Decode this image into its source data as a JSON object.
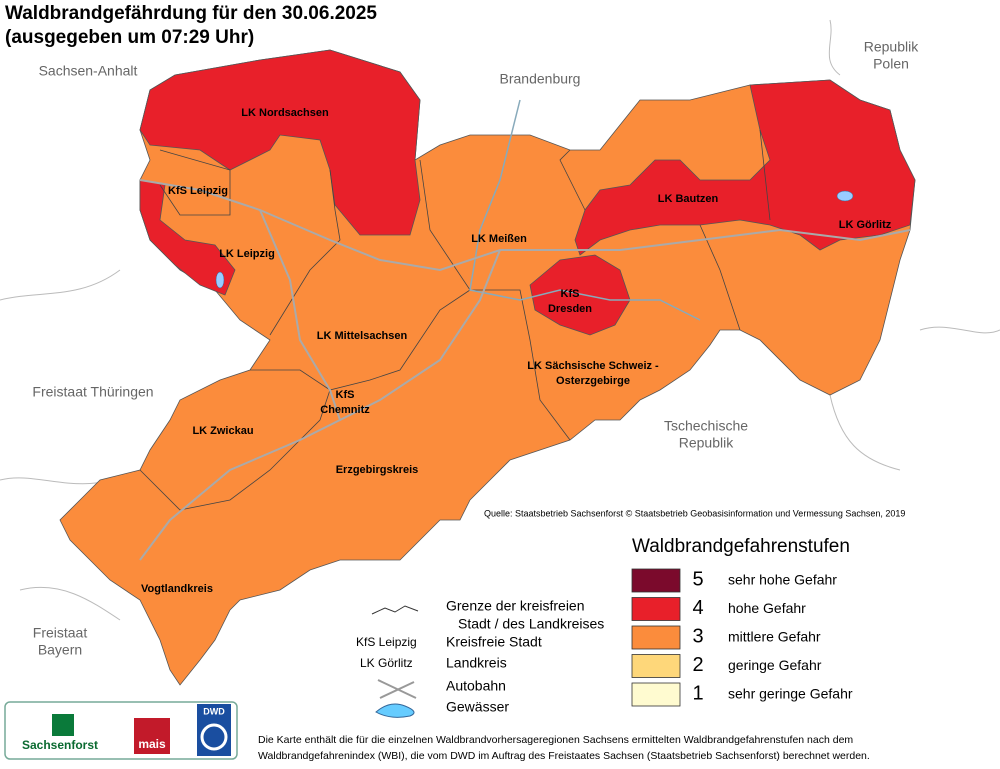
{
  "header": {
    "title": "Waldbrandgefährdung  für den  30.06.2025",
    "subtitle": "(ausgegeben um 07:29 Uhr)"
  },
  "neighbors": [
    {
      "lines": [
        "Sachsen-Anhalt"
      ]
    },
    {
      "lines": [
        "Brandenburg"
      ]
    },
    {
      "lines": [
        "Republik",
        "Polen"
      ]
    },
    {
      "lines": [
        "Freistaat Thüringen"
      ]
    },
    {
      "lines": [
        "Tschechische",
        "Republik"
      ]
    },
    {
      "lines": [
        "Freistaat",
        "Bayern"
      ]
    }
  ],
  "districts": [
    {
      "lines": [
        "LK Nordsachsen"
      ]
    },
    {
      "lines": [
        "KfS Leipzig"
      ]
    },
    {
      "lines": [
        "LK Leipzig"
      ]
    },
    {
      "lines": [
        "LK Meißen"
      ]
    },
    {
      "lines": [
        "LK Bautzen"
      ]
    },
    {
      "lines": [
        "LK Görlitz"
      ]
    },
    {
      "lines": [
        "KfS",
        "Dresden"
      ]
    },
    {
      "lines": [
        "LK Mittelsachsen"
      ]
    },
    {
      "lines": [
        "LK Sächsische Schweiz -",
        "Osterzgebirge"
      ]
    },
    {
      "lines": [
        "KfS",
        "Chemnitz"
      ]
    },
    {
      "lines": [
        "LK Zwickau"
      ]
    },
    {
      "lines": [
        "Erzgebirgskreis"
      ]
    },
    {
      "lines": [
        "Vogtlandkreis"
      ]
    }
  ],
  "source": "Quelle: Staatsbetrieb Sachsenforst  © Staatsbetrieb Geobasisinformation und Vermessung Sachsen, 2019",
  "legend": {
    "title": "Waldbrandgefahrenstufen",
    "items": [
      {
        "level": 5,
        "label": "sehr hohe Gefahr",
        "color": "#7b0a2c"
      },
      {
        "level": 4,
        "label": "hohe Gefahr",
        "color": "#e8202a"
      },
      {
        "level": 3,
        "label": "mittlere Gefahr",
        "color": "#fb8c3c"
      },
      {
        "level": 2,
        "label": "geringe Gefahr",
        "color": "#fed77a"
      },
      {
        "level": 1,
        "label": "sehr geringe Gefahr",
        "color": "#fffbd0"
      }
    ]
  },
  "key": {
    "border": [
      "Grenze der kreisfreien",
      "Stadt / des Landkreises"
    ],
    "city_example": "KfS Leipzig",
    "city": "Kreisfreie Stadt",
    "district_example": "LK Görlitz",
    "district": "Landkreis",
    "motorway": "Autobahn",
    "water": "Gewässer"
  },
  "logos": [
    "Sachsenforst",
    "mais",
    "DWD"
  ],
  "footnote": [
    "Die Karte enthält die für die einzelnen Waldbrandvorhersageregionen Sachsens ermittelten Waldbrandgefahrenstufen nach dem",
    "Waldbrandgefahrenindex (WBI), die vom DWD im Auftrag des Freistaates Sachsen (Staatsbetrieb Sachsenforst) berechnet werden."
  ]
}
